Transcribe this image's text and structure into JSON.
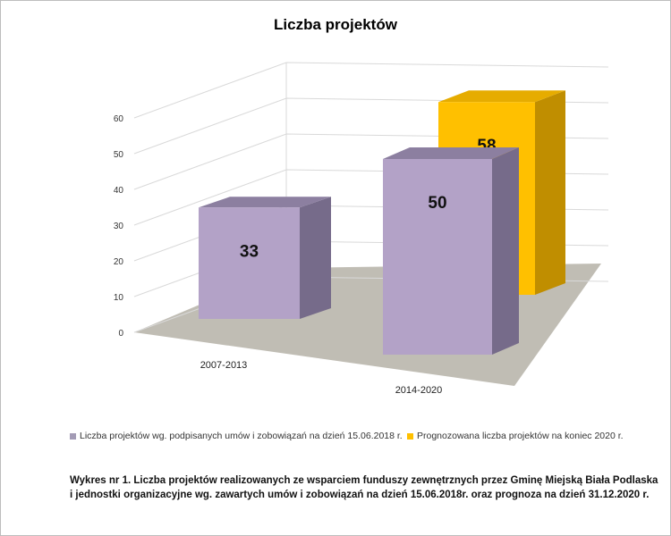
{
  "chart_data": {
    "type": "bar",
    "title": "Liczba projektów",
    "categories": [
      "2007-2013",
      "2014-2020"
    ],
    "series": [
      {
        "name": "Liczba projektów wg. podpisanych umów i zobowiązań na dzień 15.06.2018 r.",
        "values": [
          33,
          50
        ],
        "color": "#b3a2c7"
      },
      {
        "name": "Prognozowana liczba projektów na koniec 2020 r.",
        "values": [
          null,
          58
        ],
        "color": "#ffc000"
      }
    ],
    "data_labels": [
      "33",
      "50",
      "58"
    ],
    "yticks": [
      "0",
      "10",
      "20",
      "30",
      "40",
      "50",
      "60"
    ],
    "ylim": [
      0,
      60
    ],
    "grid": true,
    "legend": "bottom",
    "projection": "3d"
  },
  "caption": {
    "line1": "Wykres  nr 1. Liczba projektów realizowanych ze wsparciem funduszy zewnętrznych przez Gminę Miejską Biała Podlaska",
    "line2": "i jednostki organizacyjne wg. zawartych umów i zobowiązań  na dzień  15.06.2018r. oraz prognoza  na dzień 31.12.2020 r."
  }
}
